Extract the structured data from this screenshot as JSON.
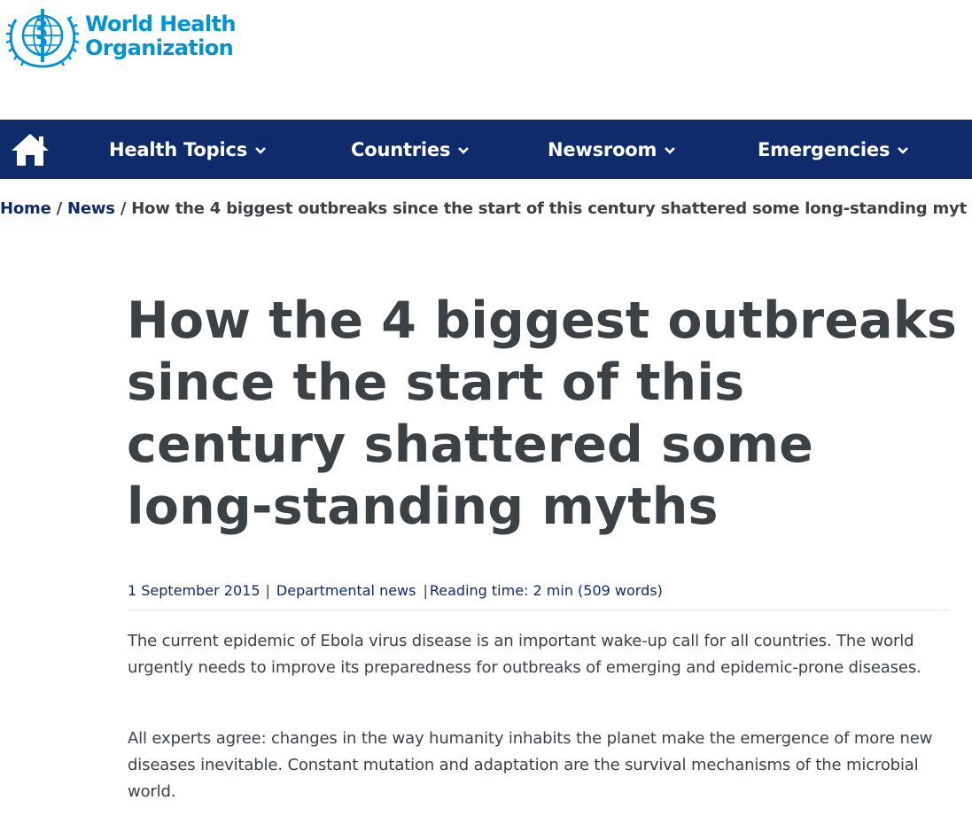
{
  "header": {
    "logo_line1": "World Health",
    "logo_line2": "Organization",
    "brand_color": "#0093d5"
  },
  "nav": {
    "background": "#0f2b6b",
    "home_icon": "home-icon",
    "items": [
      {
        "label": "Health Topics",
        "icon": "chevron-down-icon"
      },
      {
        "label": "Countries",
        "icon": "chevron-down-icon"
      },
      {
        "label": "Newsroom",
        "icon": "chevron-down-icon"
      },
      {
        "label": "Emergencies",
        "icon": "chevron-down-icon"
      }
    ]
  },
  "breadcrumb": {
    "home": "Home",
    "news": "News",
    "separator": "/",
    "current": "How the 4 biggest outbreaks since the start of this century shattered some long-standing myt"
  },
  "article": {
    "title": "How the 4 biggest outbreaks since the start of this century shattered some long-standing myths",
    "date": "1 September 2015",
    "category": "Departmental news",
    "meta_separator": "|",
    "reading_time": "Reading time: 2 min (509 words)",
    "paragraphs": [
      "The current epidemic of Ebola virus disease is an important wake-up call for all countries. The world urgently needs to improve its preparedness for outbreaks of emerging and epidemic-prone diseases.",
      "All experts agree: changes in the way humanity inhabits the planet make the emergence of more new diseases inevitable. Constant mutation and adaptation are the survival mechanisms of the microbial world."
    ]
  }
}
